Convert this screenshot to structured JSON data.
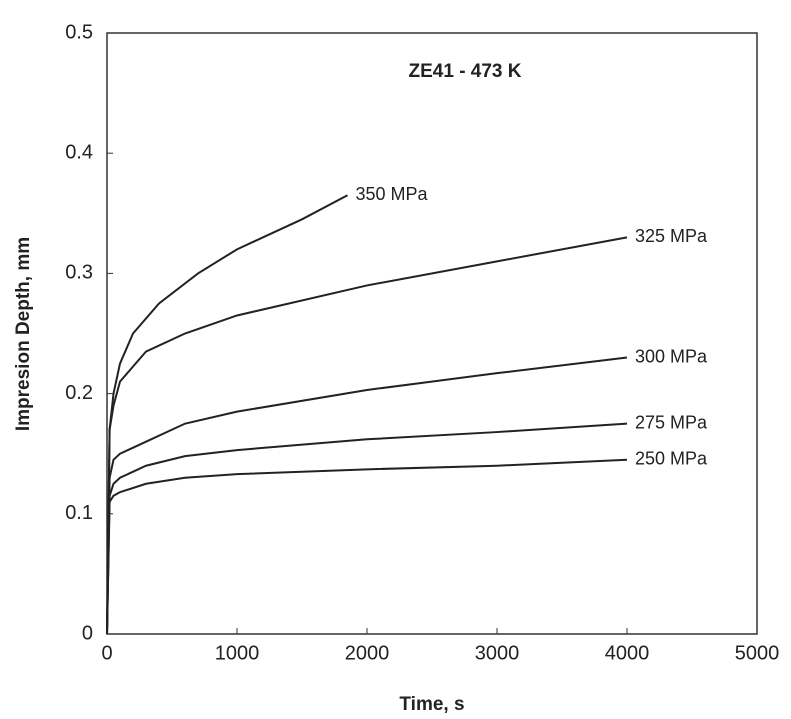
{
  "chart_data": {
    "type": "line",
    "title": "ZE41 - 473 K",
    "x_label": "Time, s",
    "y_label": "Impresion Depth, mm",
    "xlim": [
      0,
      5000
    ],
    "xticks": [
      0,
      1000,
      2000,
      3000,
      4000,
      5000
    ],
    "ylim": [
      0,
      0.5
    ],
    "yticks": [
      0,
      0.1,
      0.2,
      0.3,
      0.4,
      0.5
    ],
    "color": "#222222",
    "series": [
      {
        "name": "350 MPa",
        "x": [
          0,
          20,
          50,
          100,
          200,
          400,
          700,
          1000,
          1500,
          1850
        ],
        "values": [
          0,
          0.17,
          0.2,
          0.225,
          0.25,
          0.275,
          0.3,
          0.32,
          0.345,
          0.365
        ]
      },
      {
        "name": "325 MPa",
        "x": [
          0,
          20,
          50,
          100,
          300,
          600,
          1000,
          2000,
          3000,
          4000
        ],
        "values": [
          0,
          0.17,
          0.19,
          0.21,
          0.235,
          0.25,
          0.265,
          0.29,
          0.31,
          0.33
        ]
      },
      {
        "name": "300 MPa",
        "x": [
          0,
          20,
          50,
          100,
          300,
          600,
          1000,
          2000,
          3000,
          4000
        ],
        "values": [
          0,
          0.13,
          0.145,
          0.15,
          0.16,
          0.175,
          0.185,
          0.203,
          0.217,
          0.23
        ]
      },
      {
        "name": "275 MPa",
        "x": [
          0,
          20,
          50,
          100,
          300,
          600,
          1000,
          2000,
          3000,
          4000
        ],
        "values": [
          0,
          0.115,
          0.125,
          0.13,
          0.14,
          0.148,
          0.153,
          0.162,
          0.168,
          0.175
        ]
      },
      {
        "name": "250 MPa",
        "x": [
          0,
          20,
          50,
          100,
          300,
          600,
          1000,
          2000,
          3000,
          4000
        ],
        "values": [
          0,
          0.11,
          0.115,
          0.118,
          0.125,
          0.13,
          0.133,
          0.137,
          0.14,
          0.145
        ]
      }
    ]
  }
}
